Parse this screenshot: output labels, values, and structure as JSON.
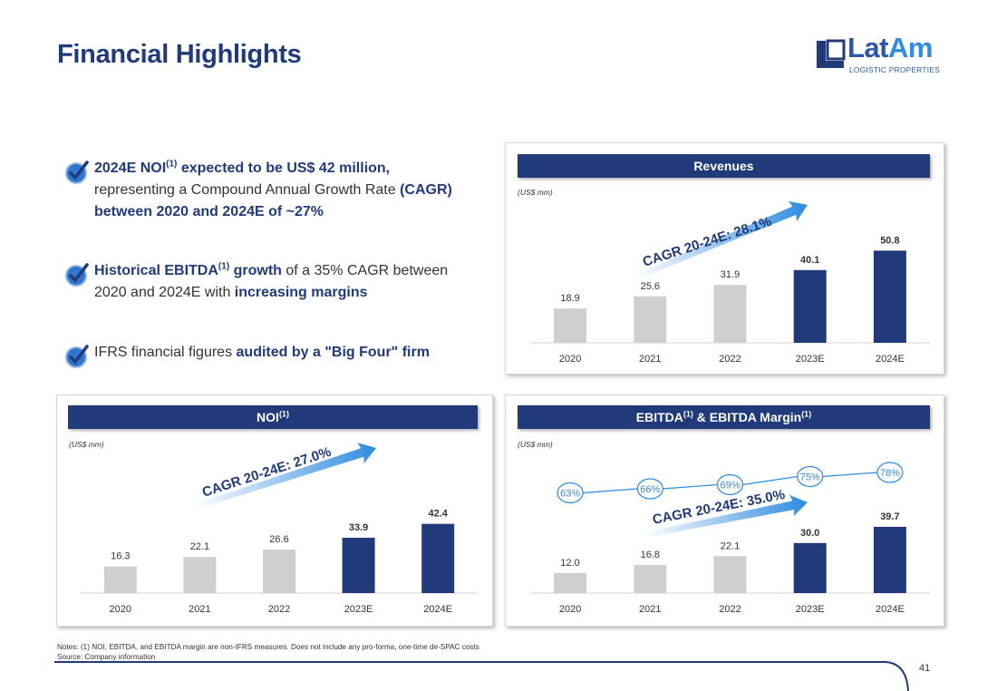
{
  "page": {
    "title": "Financial Highlights",
    "page_number": "41"
  },
  "logo": {
    "word_a": "Lat",
    "word_b": "Am",
    "tagline": "LOGISTIC PROPERTIES"
  },
  "bullets": [
    {
      "p1": "2024E NOI",
      "p1sup": "(1)",
      "p2": " expected to be US$ 42 million,",
      "p3": "representing a Compound Annual Growth Rate ",
      "p4": "(CAGR) between 2020 and 2024E of ~27%"
    },
    {
      "p1": "Historical EBITDA",
      "p1sup": "(1)",
      "p2": " growth",
      "p3": " of a 35% CAGR between 2020 and 2024E with ",
      "p4": "increasing margins"
    },
    {
      "p1": "IFRS financial figures ",
      "p2": "audited by a \"Big Four\" firm"
    }
  ],
  "panels": {
    "revenues": {
      "title": "Revenues",
      "unit": "(US$ mm)"
    },
    "noi": {
      "title": "NOI",
      "title_sup": "(1)",
      "unit": "(US$ mm)"
    },
    "ebitda": {
      "title_a": "EBITDA",
      "title_sup_a": "(1)",
      "title_b": " & EBITDA Margin",
      "title_sup_b": "(1)",
      "unit": "(US$ mm)"
    }
  },
  "notes": {
    "line1": "Notes: (1) NOI, EBITDA, and EBITDA margin are non-IFRS measures. Does not include any pro-forma, one-time de-SPAC costs",
    "line2": "Source: Company information"
  },
  "colors": {
    "navy": "#213a7a",
    "gray_bar": "#cfcfcf",
    "arrow": "#2e8be0",
    "check": "#2d77d0"
  },
  "chart_data": [
    {
      "id": "revenues",
      "type": "bar",
      "title": "Revenues",
      "unit": "(US$ mm)",
      "categories": [
        "2020",
        "2021",
        "2022",
        "2023E",
        "2024E"
      ],
      "values": [
        18.9,
        25.6,
        31.9,
        40.1,
        50.8
      ],
      "labels": [
        "18.9",
        "25.6",
        "31.9",
        "40.1",
        "50.8"
      ],
      "highlight": [
        false,
        false,
        false,
        true,
        true
      ],
      "annotation": "CAGR 20-24E: 28.1%"
    },
    {
      "id": "noi",
      "type": "bar",
      "title": "NOI(1)",
      "unit": "(US$ mm)",
      "categories": [
        "2020",
        "2021",
        "2022",
        "2023E",
        "2024E"
      ],
      "values": [
        16.3,
        22.1,
        26.6,
        33.9,
        42.4
      ],
      "labels": [
        "16.3",
        "22.1",
        "26.6",
        "33.9",
        "42.4"
      ],
      "highlight": [
        false,
        false,
        false,
        true,
        true
      ],
      "annotation": "CAGR 20-24E: 27.0%"
    },
    {
      "id": "ebitda",
      "type": "bar",
      "title": "EBITDA(1) & EBITDA Margin(1)",
      "unit": "(US$ mm)",
      "categories": [
        "2020",
        "2021",
        "2022",
        "2023E",
        "2024E"
      ],
      "values": [
        12.0,
        16.8,
        22.1,
        30.0,
        39.7
      ],
      "labels": [
        "12.0",
        "16.8",
        "22.1",
        "30.0",
        "39.7"
      ],
      "highlight": [
        false,
        false,
        false,
        true,
        true
      ],
      "margins": [
        63,
        66,
        69,
        75,
        78
      ],
      "margin_labels": [
        "63%",
        "66%",
        "69%",
        "75%",
        "78%"
      ],
      "annotation": "CAGR 20-24E: 35.0%"
    }
  ]
}
